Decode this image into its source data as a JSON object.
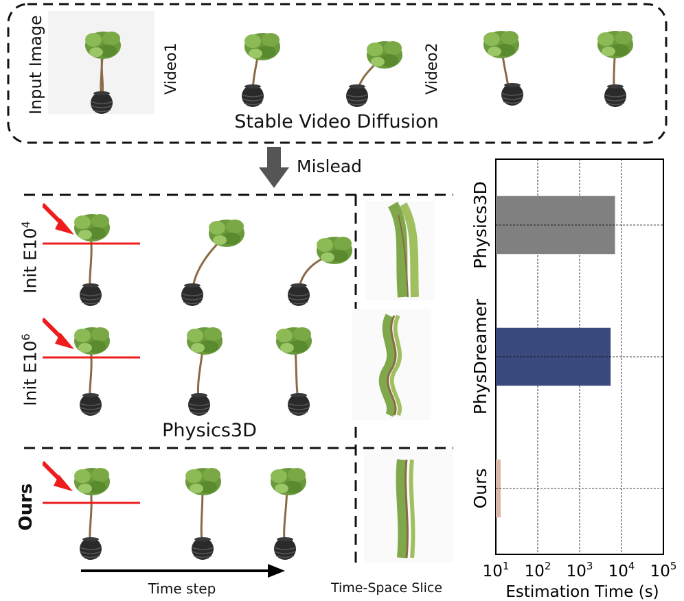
{
  "top_panel": {
    "side_label": "Input Image",
    "video1_label": "Video1",
    "video2_label": "Video2",
    "caption": "Stable Video Diffusion"
  },
  "arrow_label": "Mislead",
  "rows": {
    "row1_label_main": "Init E10",
    "row1_label_exp": "4",
    "row2_label_main": "Init E10",
    "row2_label_exp": "6",
    "group_caption": "Physics3D",
    "ours_label": "Ours"
  },
  "bottom": {
    "time_step_label": "Time step",
    "slice_label": "Time-Space Slice"
  },
  "colors": {
    "physics3d": "#808080",
    "physdreamer": "#3a4a7f",
    "ours": "#d8b7a8",
    "red_marker": "#ee1c1c"
  },
  "chart_data": {
    "type": "bar",
    "orientation": "horizontal",
    "categories": [
      "Physics3D",
      "PhysDreamer",
      "Ours"
    ],
    "values": [
      7000,
      5500,
      13
    ],
    "xlabel": "Estimation Time (s)",
    "xscale": "log",
    "xlim": [
      10,
      100000
    ],
    "xticks": [
      {
        "value": 10,
        "base": "10",
        "exp": "1"
      },
      {
        "value": 100,
        "base": "10",
        "exp": "2"
      },
      {
        "value": 1000,
        "base": "10",
        "exp": "3"
      },
      {
        "value": 10000,
        "base": "10",
        "exp": "4"
      },
      {
        "value": 100000,
        "base": "10",
        "exp": "5"
      }
    ],
    "grid": true
  }
}
